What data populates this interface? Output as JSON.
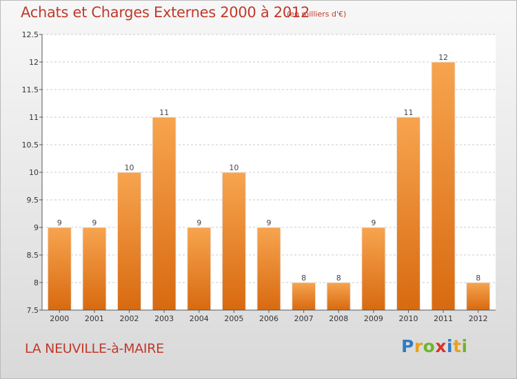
{
  "header": {
    "title": "Achats et Charges Externes 2000 à 2012",
    "unit": "(en milliers d'€)"
  },
  "footer": {
    "commune": "LA NEUVILLE-à-MAIRE",
    "brand_letters": [
      {
        "ch": "P",
        "color": "#2e7cc4"
      },
      {
        "ch": "r",
        "color": "#e8a21b"
      },
      {
        "ch": "o",
        "color": "#6fb52c"
      },
      {
        "ch": "x",
        "color": "#d9342b"
      },
      {
        "ch": "i",
        "color": "#2e7cc4"
      },
      {
        "ch": "t",
        "color": "#e8a21b"
      },
      {
        "ch": "i",
        "color": "#6fb52c"
      }
    ]
  },
  "colors": {
    "title": "#c0392b",
    "bar_light": "#f7a44f",
    "bar_dark": "#d86a10"
  },
  "chart_data": {
    "type": "bar",
    "categories": [
      "2000",
      "2001",
      "2002",
      "2003",
      "2004",
      "2005",
      "2006",
      "2007",
      "2008",
      "2009",
      "2010",
      "2011",
      "2012"
    ],
    "values": [
      9,
      9,
      10,
      11,
      9,
      10,
      9,
      8,
      8,
      9,
      11,
      12,
      8
    ],
    "value_labels": [
      "9",
      "9",
      "10",
      "11",
      "9",
      "10",
      "9",
      "8",
      "8",
      "9",
      "11",
      "12",
      "8"
    ],
    "ylim": [
      7.5,
      12.5
    ],
    "yticks": [
      7.5,
      8,
      8.5,
      9,
      9.5,
      10,
      10.5,
      11,
      11.5,
      12,
      12.5
    ],
    "ytick_labels": [
      "7.5",
      "8",
      "8.5",
      "9",
      "9.5",
      "10",
      "10.5",
      "11",
      "11.5",
      "12",
      "12.5"
    ],
    "grid": true
  }
}
